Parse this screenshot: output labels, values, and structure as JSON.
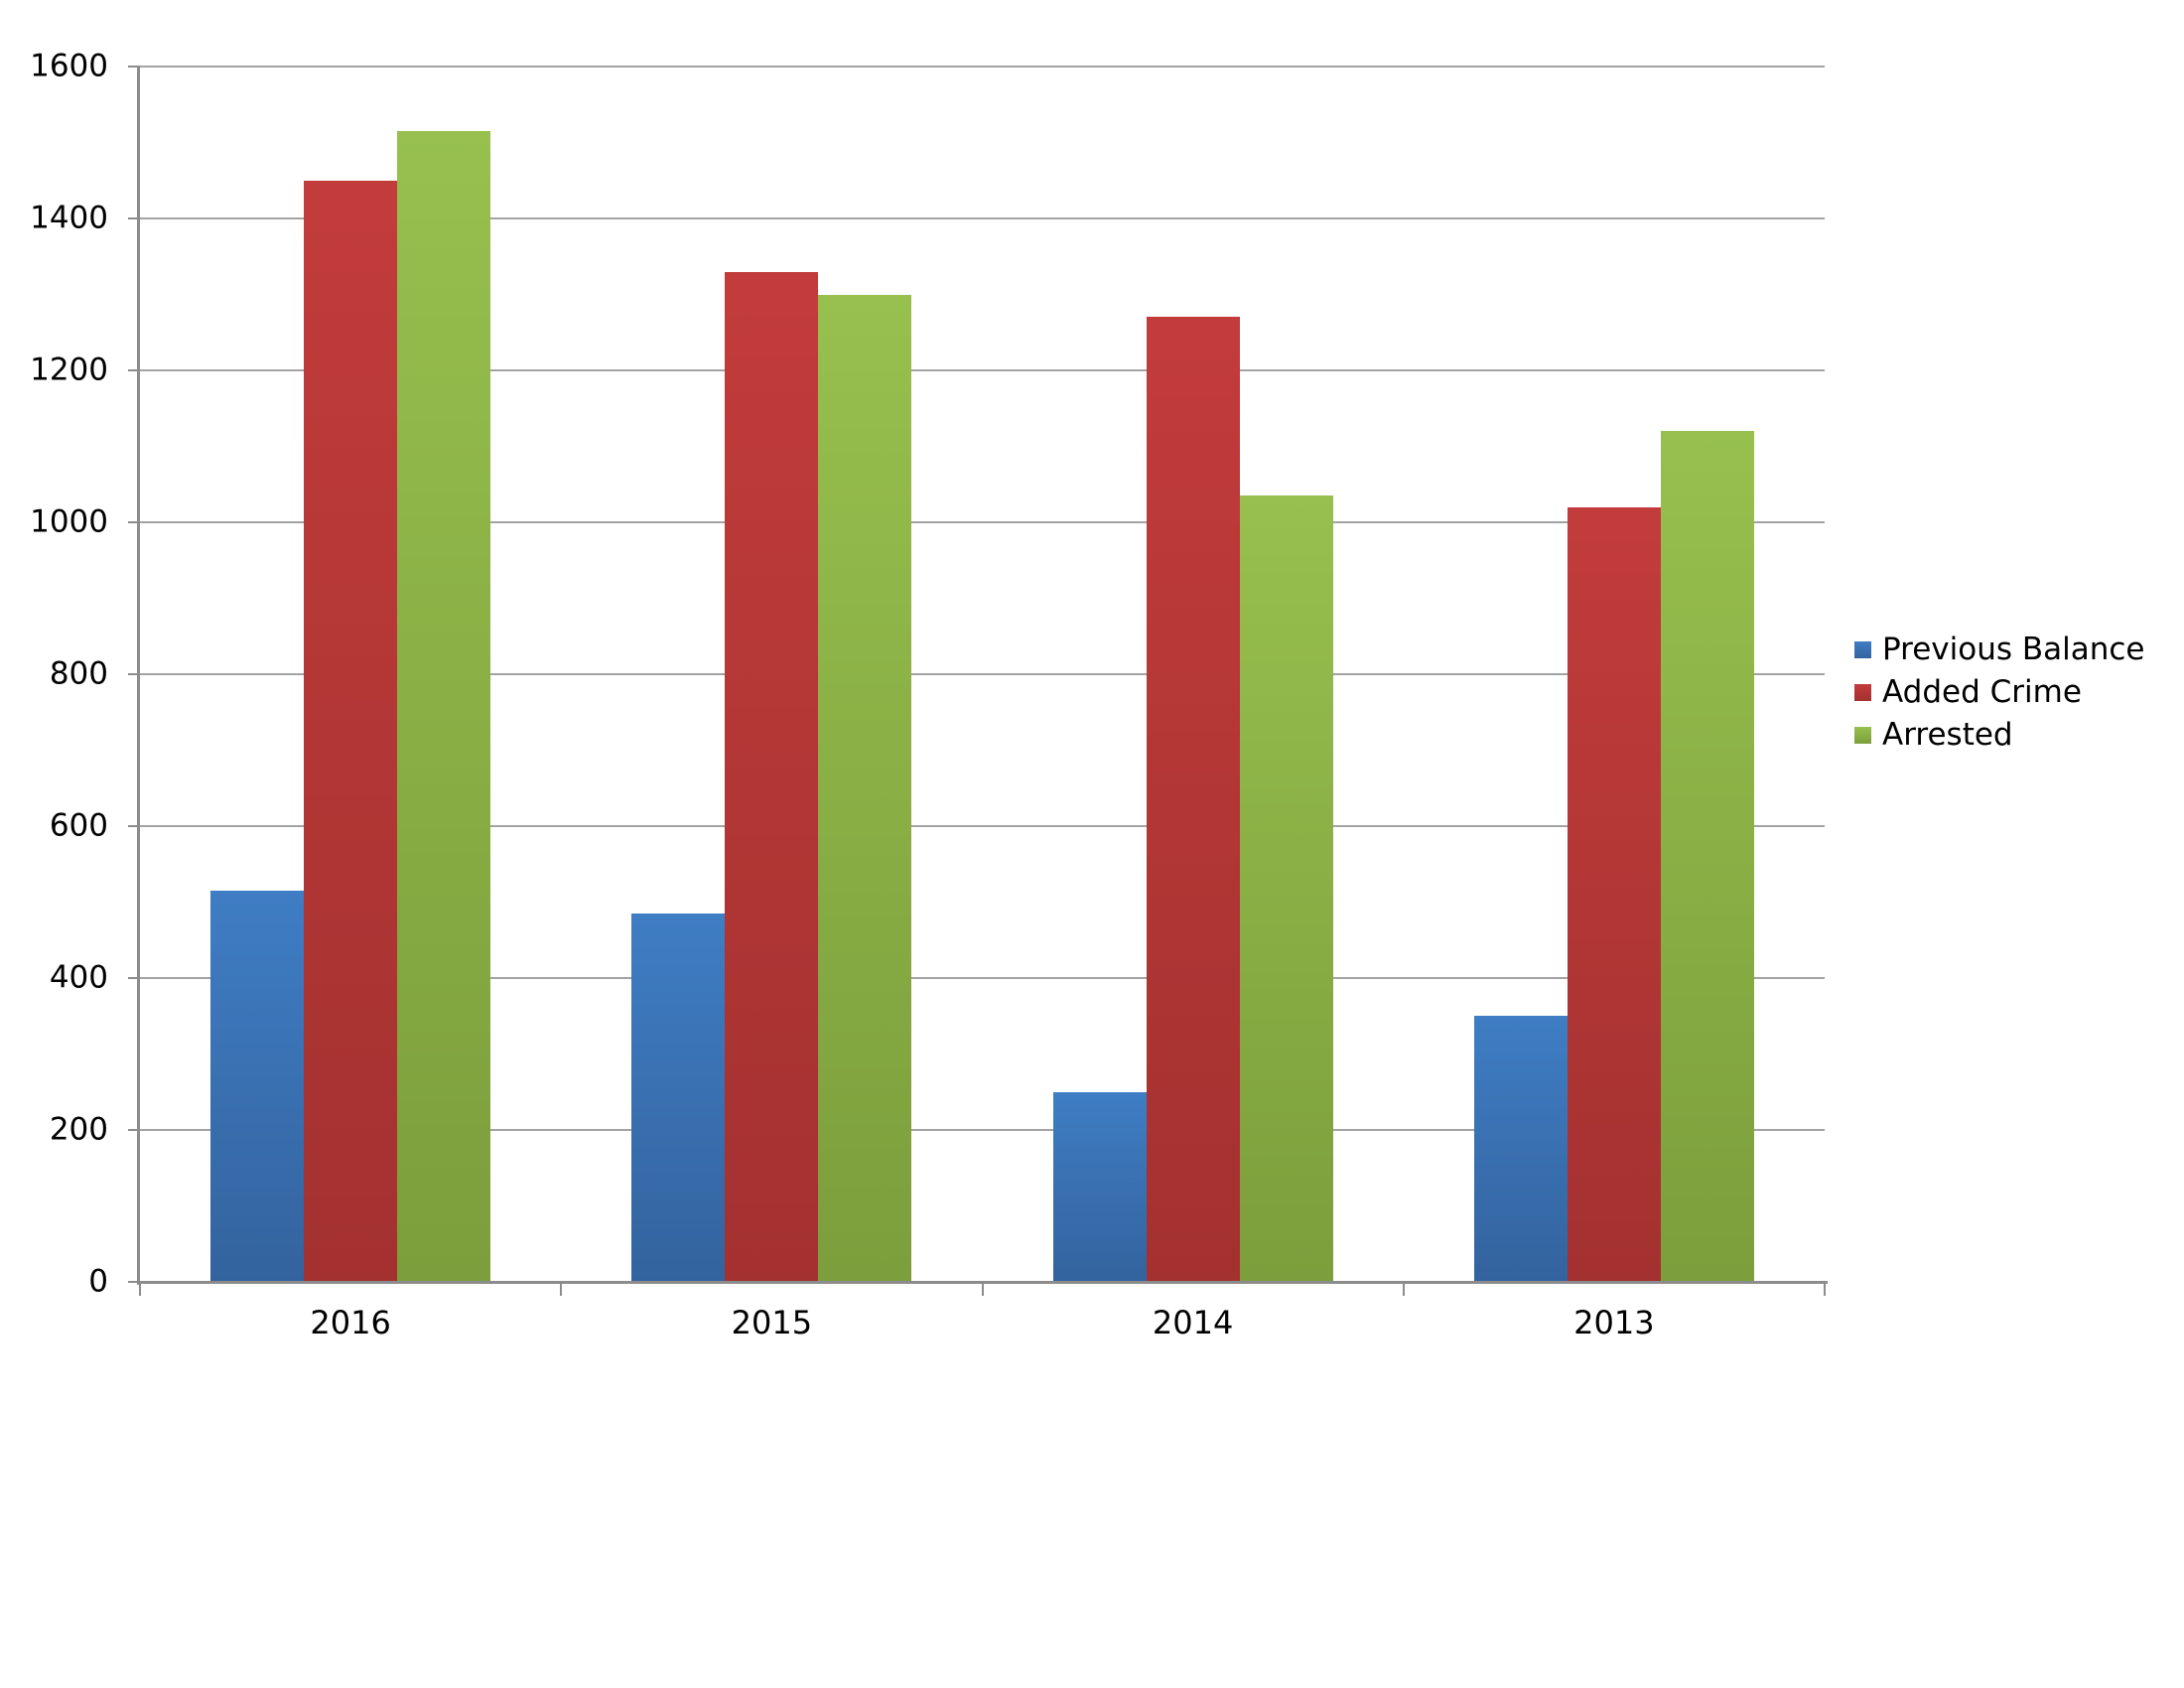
{
  "chart_data": {
    "type": "bar",
    "title": "",
    "xlabel": "",
    "ylabel": "",
    "categories": [
      "2016",
      "2015",
      "2014",
      "2013"
    ],
    "series": [
      {
        "name": "Previous Balance",
        "values": [
          515,
          485,
          250,
          350
        ],
        "color": "#3A74BC",
        "gradient_top": "#3F7DC4",
        "gradient_bottom": "#33639E"
      },
      {
        "name": "Added Crime",
        "values": [
          1450,
          1330,
          1270,
          1020
        ],
        "color": "#B83635",
        "gradient_top": "#C23C3B",
        "gradient_bottom": "#A33130"
      },
      {
        "name": "Arrested",
        "values": [
          1515,
          1300,
          1035,
          1120
        ],
        "color": "#8CB447",
        "gradient_top": "#97C04E",
        "gradient_bottom": "#7C9E3C"
      }
    ],
    "ylim": [
      0,
      1600
    ],
    "ytick_step": 200,
    "ytick_labels": [
      "0",
      "200",
      "400",
      "600",
      "800",
      "1000",
      "1200",
      "1400",
      "1600"
    ],
    "grid": true,
    "legend_position": "right-middle"
  },
  "colors": {
    "background": "#FFFFFF",
    "gridline": "#A3A3A3",
    "axis": "#8C8C8C",
    "text": "#000000"
  }
}
